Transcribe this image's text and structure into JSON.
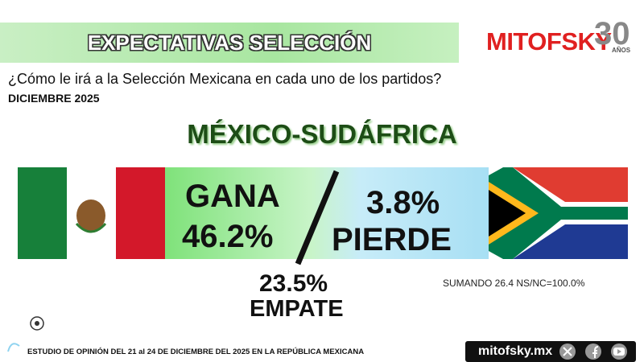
{
  "header": {
    "title": "EXPECTATIVAS SELECCIÓN",
    "brand": "MITOFSKY",
    "anniversary": "30",
    "anniversary_unit": "AÑOS"
  },
  "question": "¿Cómo le irá a la Selección Mexicana en cada uno de los partidos?",
  "date": "DICIEMBRE 2025",
  "match": "MÉXICO-SUDÁFRICA",
  "result": {
    "win_label": "GANA",
    "win_value": "46.2%",
    "lose_value": "3.8%",
    "lose_label": "PIERDE",
    "draw_value": "23.5%",
    "draw_label": "EMPATE"
  },
  "note": "SUMANDO 26.4 NS/NC=100.0%",
  "footer": {
    "study": "ESTUDIO DE OPINIÓN DEL 21 al 24 DE DICIEMBRE DEL 2025 EN LA REPÚBLICA MEXICANA",
    "site": "mitofsky.mx"
  }
}
